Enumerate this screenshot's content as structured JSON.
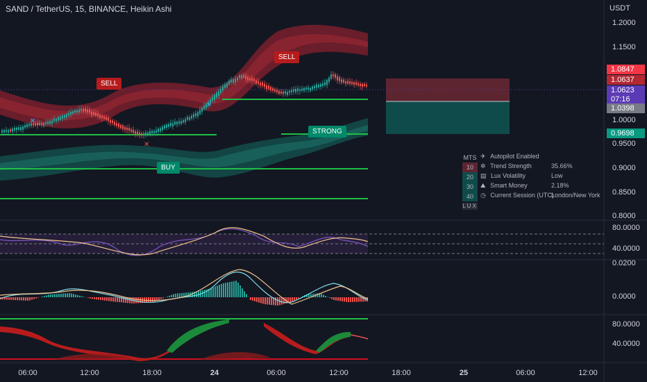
{
  "header": {
    "title": "SAND / TetherUS, 15, BINANCE, Heikin Ashi",
    "currency": "USDT"
  },
  "price_axis": {
    "ticks": [
      "1.2000",
      "1.1500",
      "1.0000",
      "0.9500",
      "0.9000",
      "0.8500",
      "0.8000"
    ],
    "badges": [
      {
        "text": "1.0847",
        "color": "#f23645"
      },
      {
        "text": "1.0637",
        "color": "#b22833"
      },
      {
        "text": "1.0623",
        "color": "#5b3bb5"
      },
      {
        "text": "07:16",
        "color": "#5b3bb5"
      },
      {
        "text": "1.0398",
        "color": "#787b86"
      },
      {
        "text": "0.9698",
        "color": "#089981"
      }
    ]
  },
  "rsi_axis": {
    "ticks": [
      "80.0000",
      "40.0000"
    ]
  },
  "macd_axis": {
    "ticks": [
      "0.0200",
      "0.0000"
    ]
  },
  "osc_axis": {
    "ticks": [
      "80.0000",
      "40.0000"
    ]
  },
  "time_axis": {
    "labels": [
      {
        "text": "06:00",
        "bold": false
      },
      {
        "text": "12:00",
        "bold": false
      },
      {
        "text": "18:00",
        "bold": false
      },
      {
        "text": "24",
        "bold": true
      },
      {
        "text": "06:00",
        "bold": false
      },
      {
        "text": "12:00",
        "bold": false
      },
      {
        "text": "18:00",
        "bold": false
      },
      {
        "text": "25",
        "bold": true
      },
      {
        "text": "06:00",
        "bold": false
      },
      {
        "text": "12:00",
        "bold": false
      }
    ]
  },
  "signals": {
    "sell1": "SELL",
    "sell2": "SELL",
    "buy": "BUY",
    "strong": "STRONG"
  },
  "dashboard": {
    "header": "MTS",
    "mts_values": [
      "10",
      "20",
      "30",
      "40"
    ],
    "footer": "LUX",
    "rows": [
      {
        "icon": "airplane-icon",
        "glyph": "✈",
        "label": "Autopilot Enabled",
        "value": ""
      },
      {
        "icon": "sparkle-icon",
        "glyph": "✲",
        "label": "Trend Strength",
        "value": "35.66%"
      },
      {
        "icon": "chart-box-icon",
        "glyph": "▤",
        "label": "Lux Volatility",
        "value": "Low"
      },
      {
        "icon": "mountain-icon",
        "glyph": "⛰",
        "label": "Smart Money",
        "value": "2.18%"
      },
      {
        "icon": "clock-icon",
        "glyph": "◷",
        "label": "Current Session (UTC)",
        "value": "London/New York"
      }
    ]
  },
  "colors": {
    "background": "#131722",
    "bull": "#26a69a",
    "bear": "#ef5350",
    "level_line": "#1fbf45",
    "sell_label": "#b71c1c",
    "buy_label": "#00896a"
  }
}
